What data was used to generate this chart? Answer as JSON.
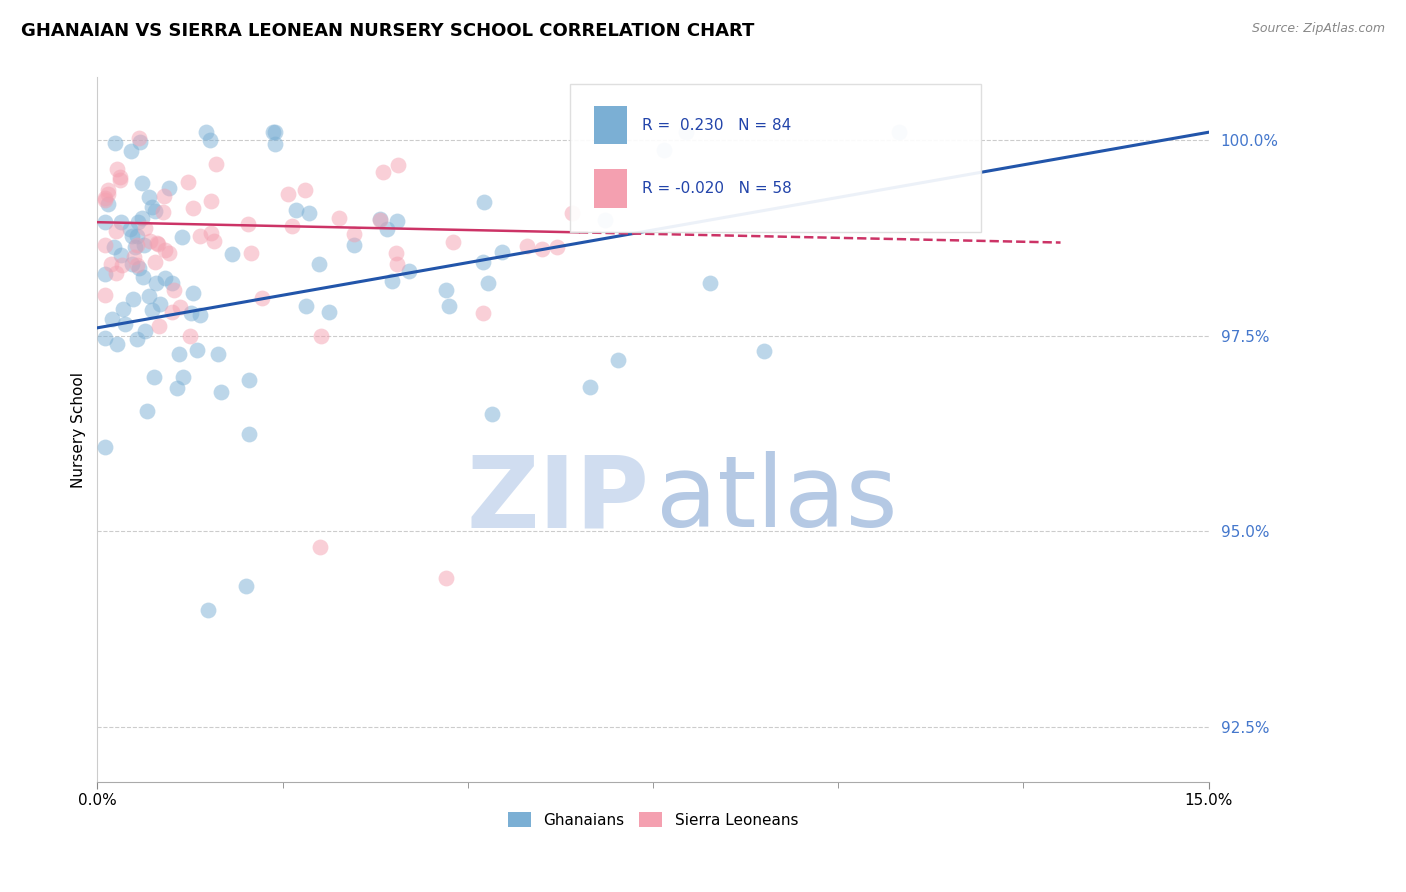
{
  "title": "GHANAIAN VS SIERRA LEONEAN NURSERY SCHOOL CORRELATION CHART",
  "source_text": "Source: ZipAtlas.com",
  "ylabel": "Nursery School",
  "xlim": [
    0.0,
    0.15
  ],
  "ylim": [
    0.918,
    1.008
  ],
  "yticks": [
    0.925,
    0.95,
    0.975,
    1.0
  ],
  "ytick_labels": [
    "92.5%",
    "95.0%",
    "97.5%",
    "100.0%"
  ],
  "xtick_labels": [
    "0.0%",
    "15.0%"
  ],
  "r_ghanaian": 0.23,
  "n_ghanaian": 84,
  "r_sierraleonean": -0.02,
  "n_sierraleonean": 58,
  "color_ghanaian": "#7bafd4",
  "color_sierraleonean": "#f4a0b0",
  "trendline_ghanaian": "#2255aa",
  "trendline_sierraleonean": "#cc3366",
  "background_color": "#ffffff",
  "legend_labels": [
    "Ghanaians",
    "Sierra Leoneans"
  ],
  "watermark_zip_color": "#c8d8ee",
  "watermark_atlas_color": "#a8c0e0"
}
